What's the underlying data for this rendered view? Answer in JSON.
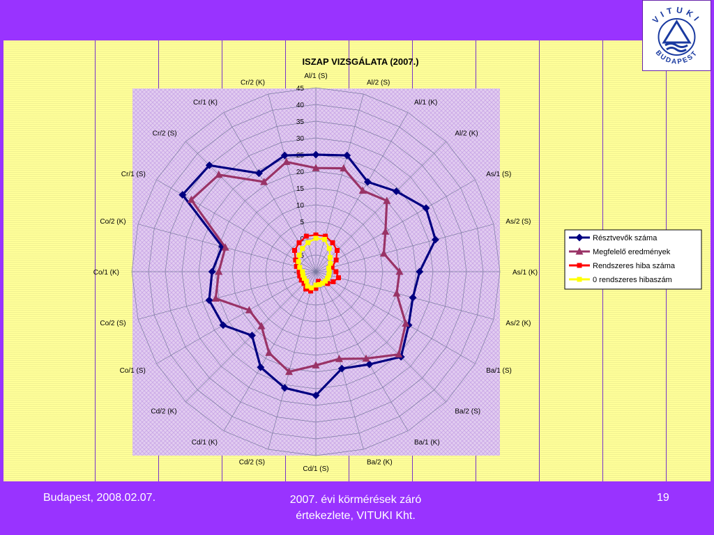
{
  "footer": {
    "date": "Budapest, 2008.02.07.",
    "event_line1": "2007. évi körmérések záró",
    "event_line2": "értekezlete, VITUKI Kht.",
    "page_number": "19"
  },
  "logo": {
    "top_text": "VITUKI",
    "bottom_text": "BUDAPEST",
    "color": "#1a3aa0"
  },
  "colors": {
    "slide_border": "#9933ff",
    "slide_background": "#ffff99",
    "plot_area": "#e0c8f0",
    "grid": "#7a7aa0"
  },
  "chart_data": {
    "type": "radar",
    "title": "ISZAP VIZSGÁLATA (2007.)",
    "rlim": [
      -10,
      45
    ],
    "rticks": [
      -10,
      -5,
      0,
      5,
      10,
      15,
      20,
      25,
      30,
      35,
      40,
      45
    ],
    "categories": [
      "Al/1 (S)",
      "Al/2 (S)",
      "Al/1 (K)",
      "Al/2 (K)",
      "As/1 (S)",
      "As/2 (S)",
      "As/1 (K)",
      "As/2 (K)",
      "Ba/1 (S)",
      "Ba/2 (S)",
      "Ba/1 (K)",
      "Ba/2 (K)",
      "Cd/1 (S)",
      "Cd/2 (S)",
      "Cd/1 (K)",
      "Cd/2 (K)",
      "Co/1 (S)",
      "Co/2 (S)",
      "Co/1 (K)",
      "Co/2 (K)",
      "Cr/1 (S)",
      "Cr/2 (S)",
      "Cr/1 (K)",
      "Cr/2 (K)"
    ],
    "legend_position": "right",
    "grid": true,
    "series": [
      {
        "name": "Résztvevők száma",
        "color": "#000080",
        "marker": "diamond",
        "values": [
          25,
          26,
          21,
          24,
          28,
          27,
          21,
          20,
          22,
          26,
          22,
          20,
          27,
          26,
          23,
          17,
          22,
          23,
          21,
          19,
          36,
          35,
          24,
          26
        ]
      },
      {
        "name": "Megfelelő eredmények",
        "color": "#993366",
        "marker": "triangle",
        "values": [
          21,
          22,
          18,
          20,
          14,
          11,
          15,
          15,
          21,
          25,
          20,
          17,
          18,
          21,
          18,
          13,
          13,
          21,
          19,
          18,
          33,
          31,
          21,
          24
        ]
      },
      {
        "name": "Rendszeres hiba száma",
        "color": "#ff0000",
        "marker": "square",
        "values": [
          1,
          1,
          0,
          -1,
          -3,
          -5,
          -4,
          -3,
          -4,
          -5,
          -6,
          -7,
          -5,
          -4,
          -4,
          -5,
          -5,
          -5,
          -5,
          -4,
          -3,
          -1,
          0,
          1
        ]
      },
      {
        "name": "0 rendszeres hibaszám",
        "color": "#ffff00",
        "marker": "circle",
        "values": [
          0,
          0,
          -2,
          -4,
          -5,
          -6,
          -6,
          -6,
          -6,
          -6,
          -6,
          -6,
          -6,
          -5,
          -5,
          -6,
          -6,
          -6,
          -6,
          -5,
          -4,
          -3,
          -2,
          -1
        ]
      }
    ]
  }
}
